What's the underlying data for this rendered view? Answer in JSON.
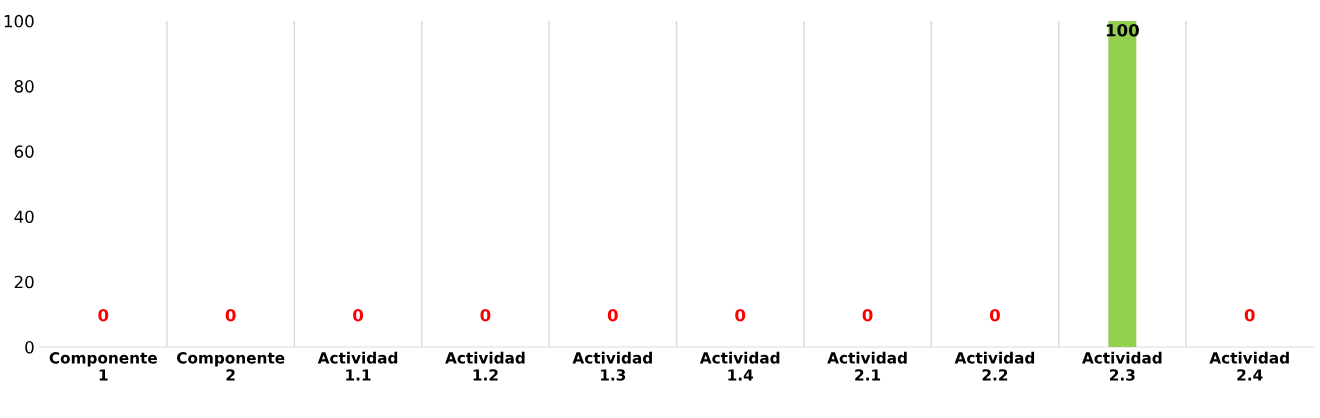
{
  "chart_data": {
    "type": "bar",
    "categories": [
      "Componente 1",
      "Componente 2",
      "Actividad 1.1",
      "Actividad 1.2",
      "Actividad 1.3",
      "Actividad 1.4",
      "Actividad 2.1",
      "Actividad 2.2",
      "Actividad 2.3",
      "Actividad 2.4"
    ],
    "values": [
      0,
      0,
      0,
      0,
      0,
      0,
      0,
      0,
      100,
      0
    ],
    "color": "#92d050",
    "ylim": [
      0,
      100
    ],
    "yticks": [
      0,
      20,
      40,
      60,
      80,
      100
    ],
    "grid": "x",
    "data_labels": true,
    "legend": false
  }
}
